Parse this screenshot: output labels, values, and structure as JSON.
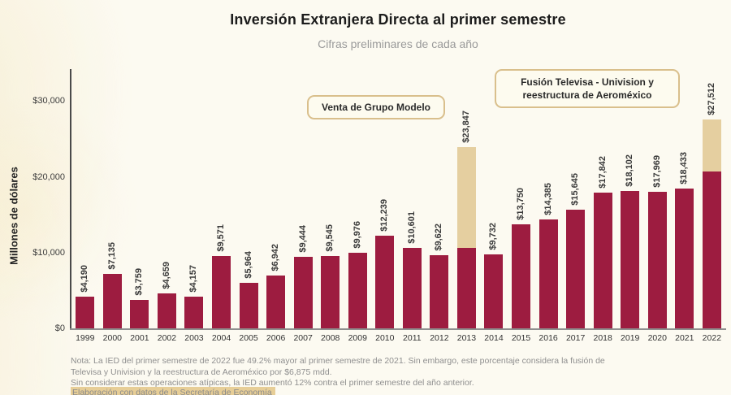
{
  "header": {
    "title": "Inversión Extranjera Directa al primer semestre",
    "subtitle": "Cifras preliminares de cada año"
  },
  "y_axis": {
    "label": "Millones de dólares",
    "ticks": {
      "t0": "$0",
      "t1": "$10,000",
      "t2": "$20,000",
      "t3": "$30,000"
    }
  },
  "annotations": {
    "grupo_modelo": "Venta de Grupo Modelo",
    "televisa_line1": "Fusión Televisa - Univision y",
    "televisa_line2": "reestructura de Aeroméxico"
  },
  "notes": {
    "line1": "Nota: La IED del primer semestre de 2022 fue 49.2% mayor al primer semestre de 2021. Sin embargo, este porcentaje considera la fusión de",
    "line2": "Televisa y Univision y la reestructura de Aeroméxico por $6,875 mdd.",
    "line3": "Sin considerar estas operaciones atípicas, la IED aumentó 12% contra el primer semestre del año anterior.",
    "source": "Elaboración con datos de la Secretaría de Economía"
  },
  "colors": {
    "bar": "#9D1C40",
    "atypical_segment": "#E5CFA0",
    "annotation_border": "#D9BF8C"
  },
  "chart_data": {
    "type": "bar",
    "title": "Inversión Extranjera Directa al primer semestre",
    "subtitle": "Cifras preliminares de cada año",
    "xlabel": "",
    "ylabel": "Millones de dólares",
    "ylim": [
      0,
      30000
    ],
    "y_ticks": [
      0,
      10000,
      20000,
      30000
    ],
    "grid": false,
    "legend": false,
    "categories": [
      "1999",
      "2000",
      "2001",
      "2002",
      "2003",
      "2004",
      "2005",
      "2006",
      "2007",
      "2008",
      "2009",
      "2010",
      "2011",
      "2012",
      "2013",
      "2014",
      "2015",
      "2016",
      "2017",
      "2018",
      "2019",
      "2020",
      "2021",
      "2022"
    ],
    "totals": [
      4190,
      7135,
      3759,
      4659,
      4157,
      9571,
      5964,
      6942,
      9444,
      9545,
      9976,
      12239,
      10601,
      9622,
      23847,
      9732,
      13750,
      14385,
      15645,
      17842,
      18102,
      17969,
      18433,
      27512
    ],
    "labels": [
      "$4,190",
      "$7,135",
      "$3,759",
      "$4,659",
      "$4,157",
      "$9,571",
      "$5,964",
      "$6,942",
      "$9,444",
      "$9,545",
      "$9,976",
      "$12,239",
      "$10,601",
      "$9,622",
      "$23,847",
      "$9,732",
      "$13,750",
      "$14,385",
      "$15,645",
      "$17,842",
      "$18,102",
      "$17,969",
      "$18,433",
      "$27,512"
    ],
    "series": [
      {
        "name": "IED",
        "values": [
          4190,
          7135,
          3759,
          4659,
          4157,
          9571,
          5964,
          6942,
          9444,
          9545,
          9976,
          12239,
          10601,
          9622,
          10598,
          9732,
          13750,
          14385,
          15645,
          17842,
          18102,
          17969,
          18433,
          20637
        ]
      },
      {
        "name": "Operaciones atípicas",
        "values": [
          0,
          0,
          0,
          0,
          0,
          0,
          0,
          0,
          0,
          0,
          0,
          0,
          0,
          0,
          13249,
          0,
          0,
          0,
          0,
          0,
          0,
          0,
          0,
          6875
        ]
      }
    ],
    "annotations": [
      {
        "text": "Venta de Grupo Modelo",
        "target_year": "2013"
      },
      {
        "text": "Fusión Televisa - Univision y reestructura de Aeroméxico",
        "target_year": "2022"
      }
    ]
  }
}
